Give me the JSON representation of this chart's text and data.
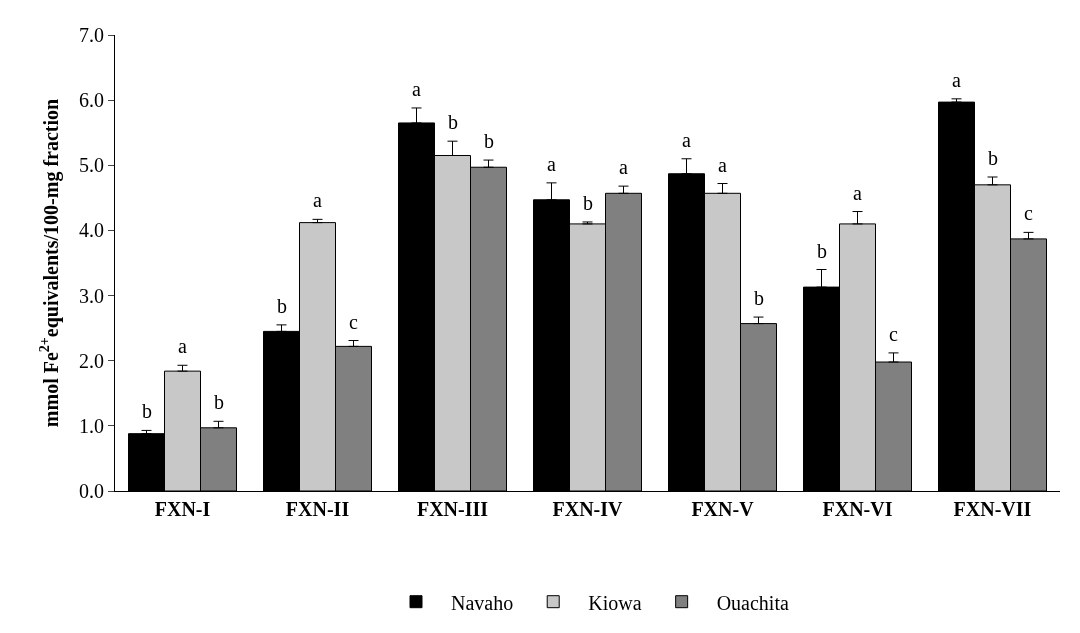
{
  "chart_data": {
    "type": "bar",
    "ylabel": "mmol Fe$^{2+}$equivalents/100-mg fraction",
    "categories": [
      "FXN-I",
      "FXN-II",
      "FXN-III",
      "FXN-IV",
      "FXN-V",
      "FXN-VI",
      "FXN-VII"
    ],
    "series": [
      {
        "name": "Navaho",
        "color": "#000000",
        "values": [
          0.88,
          2.45,
          5.65,
          4.47,
          4.87,
          3.13,
          5.97
        ],
        "errors": [
          [
            0.88,
            0.93
          ],
          [
            2.45,
            2.55
          ],
          [
            5.65,
            5.88
          ],
          [
            4.47,
            4.73
          ],
          [
            4.87,
            5.1
          ],
          [
            3.13,
            3.4
          ],
          [
            5.97,
            6.02
          ]
        ],
        "value_labels": [
          "b",
          "b",
          "a",
          "a",
          "a",
          "b",
          "a"
        ]
      },
      {
        "name": "Kiowa",
        "color": "#c8c8c8",
        "values": [
          1.84,
          4.12,
          5.15,
          4.1,
          4.57,
          4.1,
          4.7
        ],
        "errors": [
          [
            1.84,
            1.93
          ],
          [
            4.12,
            4.17
          ],
          [
            5.15,
            5.37
          ],
          [
            4.1,
            4.13
          ],
          [
            4.57,
            4.72
          ],
          [
            4.1,
            4.29
          ],
          [
            4.7,
            4.82
          ]
        ],
        "value_labels": [
          "a",
          "a",
          "b",
          "b",
          "a",
          "a",
          "b"
        ]
      },
      {
        "name": "Ouachita",
        "color": "#808080",
        "values": [
          0.97,
          2.22,
          4.97,
          4.57,
          2.57,
          1.98,
          3.87
        ],
        "errors": [
          [
            0.97,
            1.07
          ],
          [
            2.22,
            2.31
          ],
          [
            4.97,
            5.08
          ],
          [
            4.57,
            4.68
          ],
          [
            2.57,
            2.67
          ],
          [
            1.98,
            2.12
          ],
          [
            3.87,
            3.97
          ]
        ],
        "value_labels": [
          "b",
          "c",
          "b",
          "a",
          "b",
          "c",
          "c"
        ]
      }
    ],
    "ylim": [
      0,
      7
    ],
    "yticks": [
      {
        "value": 0,
        "label": "0.0"
      },
      {
        "value": 1,
        "label": "1.0"
      },
      {
        "value": 2,
        "label": "2.0"
      },
      {
        "value": 3,
        "label": "3.0"
      },
      {
        "value": 4,
        "label": "4.0"
      },
      {
        "value": 5,
        "label": "5.0"
      },
      {
        "value": 6,
        "label": "6.0"
      },
      {
        "value": 7,
        "label": "7.0"
      }
    ],
    "legend": "bottom"
  }
}
